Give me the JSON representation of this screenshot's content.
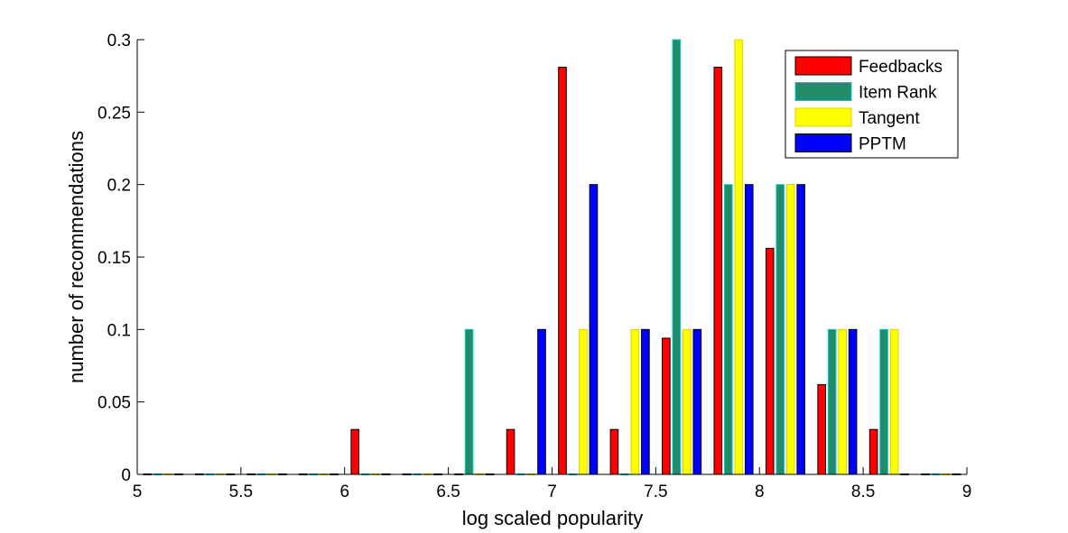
{
  "chart_data": {
    "type": "bar",
    "xlabel": "log scaled popularity",
    "ylabel": "number of recommendations",
    "xlim": [
      5,
      9
    ],
    "ylim": [
      0,
      0.3
    ],
    "x_ticks": [
      "5",
      "5.5",
      "6",
      "6.5",
      "7",
      "7.5",
      "8",
      "8.5",
      "9"
    ],
    "y_ticks": [
      "0",
      "0.05",
      "0.1",
      "0.15",
      "0.2",
      "0.25",
      "0.3"
    ],
    "grid": false,
    "legend_position": "top-right",
    "bin_centers": [
      5.125,
      5.375,
      5.625,
      5.875,
      6.125,
      6.375,
      6.625,
      6.875,
      7.125,
      7.375,
      7.625,
      7.875,
      8.125,
      8.375,
      8.625,
      8.875
    ],
    "series": [
      {
        "name": "Feedbacks",
        "color": "#ff0000",
        "edge": "#000000",
        "values": [
          0,
          0,
          0,
          0,
          0.031,
          0,
          0,
          0.031,
          0.281,
          0.031,
          0.094,
          0.281,
          0.156,
          0.062,
          0.031,
          0
        ]
      },
      {
        "name": "Item Rank",
        "color": "#218b6a",
        "edge": "#00cccc",
        "values": [
          0,
          0,
          0,
          0,
          0,
          0,
          0.1,
          0,
          0,
          0,
          0.3,
          0.2,
          0.2,
          0.1,
          0.1,
          0
        ]
      },
      {
        "name": "Tangent",
        "color": "#ffff00",
        "edge": "#d4d400",
        "values": [
          0,
          0,
          0,
          0,
          0,
          0,
          0,
          0,
          0.1,
          0.1,
          0.1,
          0.3,
          0.2,
          0.1,
          0.1,
          0
        ]
      },
      {
        "name": "PPTM",
        "color": "#0000ff",
        "edge": "#000000",
        "values": [
          0,
          0,
          0,
          0,
          0,
          0,
          0,
          0.1,
          0.2,
          0.1,
          0.1,
          0.2,
          0.2,
          0.1,
          0,
          0
        ]
      }
    ]
  }
}
